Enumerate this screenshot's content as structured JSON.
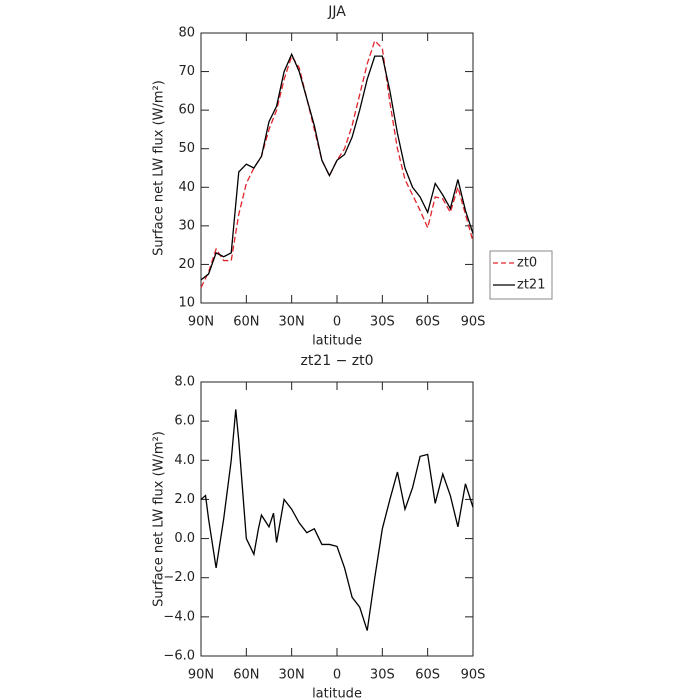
{
  "chart_data": [
    {
      "type": "line",
      "title": "JJA",
      "x_label": "latitude",
      "y_label": "Surface net LW flux (W/m²)",
      "xlim": [
        90,
        -90
      ],
      "ylim": [
        10,
        80
      ],
      "xticks": [
        {
          "value": 90,
          "label": "90N"
        },
        {
          "value": 60,
          "label": "60N"
        },
        {
          "value": 30,
          "label": "30N"
        },
        0,
        {
          "value": -30,
          "label": "30S"
        },
        {
          "value": -60,
          "label": "60S"
        },
        {
          "value": -90,
          "label": "90S"
        }
      ],
      "yticks": [
        10,
        20,
        30,
        40,
        50,
        60,
        70,
        80
      ],
      "legend": "right",
      "x": [
        90,
        85,
        80,
        75,
        70,
        65,
        60,
        55,
        50,
        45,
        40,
        35,
        30,
        25,
        20,
        15,
        10,
        5,
        0,
        -5,
        -10,
        -15,
        -20,
        -25,
        -30,
        -35,
        -40,
        -45,
        -50,
        -55,
        -60,
        -65,
        -70,
        -75,
        -80,
        -85,
        -90
      ],
      "series": [
        {
          "name": "zt0",
          "color": "#e0242b",
          "linestyle": "dashed",
          "values": [
            14,
            18,
            24,
            21,
            21,
            33,
            41,
            45,
            48,
            55,
            60,
            68,
            74,
            71,
            63,
            55,
            47,
            43,
            47,
            50,
            56,
            64,
            72,
            78,
            76,
            62,
            50,
            42,
            38,
            34,
            29.5,
            37.5,
            37,
            33.5,
            40,
            33,
            26
          ]
        },
        {
          "name": "zt21",
          "color": "#000000",
          "linestyle": "solid",
          "values": [
            16,
            17.5,
            23,
            22,
            23,
            44,
            46,
            45,
            48,
            57,
            61,
            70,
            74.5,
            70,
            63,
            56,
            47,
            43,
            47,
            48.5,
            53,
            60,
            68,
            74,
            74,
            65,
            54,
            45,
            40,
            37.5,
            33.5,
            41,
            38,
            34.5,
            42,
            34,
            28
          ]
        }
      ]
    },
    {
      "type": "line",
      "title": "zt21 − zt0",
      "x_label": "latitude",
      "y_label": "Surface net LW flux (W/m²)",
      "xlim": [
        90,
        -90
      ],
      "ylim": [
        -6,
        8
      ],
      "xticks": [
        {
          "value": 90,
          "label": "90N"
        },
        {
          "value": 60,
          "label": "60N"
        },
        {
          "value": 30,
          "label": "30N"
        },
        0,
        {
          "value": -30,
          "label": "30S"
        },
        {
          "value": -60,
          "label": "60S"
        },
        {
          "value": -90,
          "label": "90S"
        }
      ],
      "yticks": [
        {
          "value": -6,
          "label": "−6.0"
        },
        {
          "value": -4,
          "label": "−4.0"
        },
        {
          "value": -2,
          "label": "−2.0"
        },
        {
          "value": 0,
          "label": "0.0"
        },
        {
          "value": 2,
          "label": "2.0"
        },
        {
          "value": 4,
          "label": "4.0"
        },
        {
          "value": 6,
          "label": "6.0"
        },
        {
          "value": 8,
          "label": "8.0"
        }
      ],
      "x": [
        90,
        87,
        85,
        80,
        75,
        70,
        67,
        65,
        60,
        55,
        52,
        50,
        45,
        42,
        40,
        35,
        30,
        25,
        20,
        15,
        10,
        5,
        0,
        -5,
        -10,
        -15,
        -20,
        -25,
        -30,
        -35,
        -40,
        -45,
        -50,
        -55,
        -60,
        -65,
        -70,
        -75,
        -80,
        -85,
        -90
      ],
      "series": [
        {
          "color": "#000000",
          "linestyle": "solid",
          "values": [
            2.0,
            2.2,
            1.0,
            -1.5,
            1.0,
            4.0,
            6.6,
            5.0,
            0.0,
            -0.8,
            0.5,
            1.2,
            0.6,
            1.3,
            -0.2,
            2.0,
            1.5,
            0.8,
            0.3,
            0.5,
            -0.3,
            -0.3,
            -0.4,
            -1.5,
            -3.0,
            -3.5,
            -4.7,
            -2.0,
            0.5,
            2.0,
            3.4,
            1.5,
            2.6,
            4.2,
            4.3,
            1.8,
            3.3,
            2.2,
            0.6,
            2.8,
            1.6
          ]
        }
      ]
    }
  ]
}
